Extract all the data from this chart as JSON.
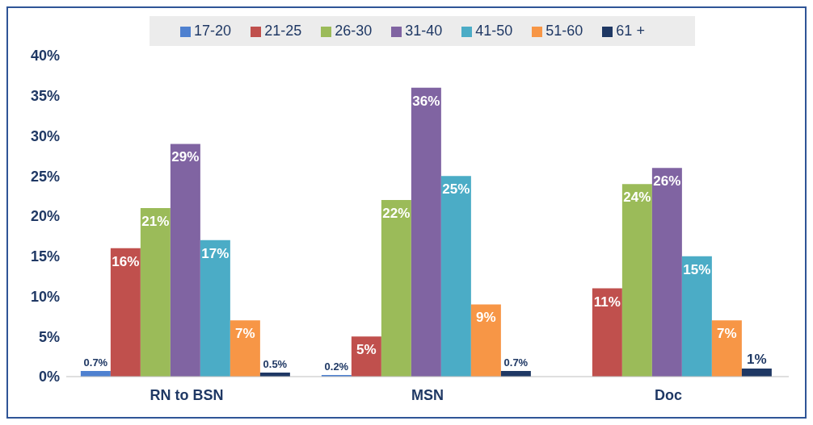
{
  "chart_data": {
    "type": "bar",
    "categories": [
      "RN to BSN",
      "MSN",
      "Doc"
    ],
    "series": [
      {
        "name": "17-20",
        "color": "#4f81d0",
        "values": [
          0.7,
          0.2,
          null
        ],
        "value_labels": [
          "0.7%",
          "0.2%",
          null
        ]
      },
      {
        "name": "21-25",
        "color": "#c0504d",
        "values": [
          16,
          5,
          11
        ],
        "value_labels": [
          "16%",
          "5%",
          "11%"
        ]
      },
      {
        "name": "26-30",
        "color": "#9bbb59",
        "values": [
          21,
          22,
          24
        ],
        "value_labels": [
          "21%",
          "22%",
          "24%"
        ]
      },
      {
        "name": "31-40",
        "color": "#8064a2",
        "values": [
          29,
          36,
          26
        ],
        "value_labels": [
          "29%",
          "36%",
          "26%"
        ]
      },
      {
        "name": "41-50",
        "color": "#4bacc6",
        "values": [
          17,
          25,
          15
        ],
        "value_labels": [
          "17%",
          "25%",
          "15%"
        ]
      },
      {
        "name": "51-60",
        "color": "#f79646",
        "values": [
          7,
          9,
          7
        ],
        "value_labels": [
          "7%",
          "9%",
          "7%"
        ]
      },
      {
        "name": "61 +",
        "color": "#1f3864",
        "values": [
          0.5,
          0.7,
          1
        ],
        "value_labels": [
          "0.5%",
          "0.7%",
          "1%"
        ]
      }
    ],
    "ylim": [
      0,
      40
    ],
    "yticks": [
      {
        "value": 0,
        "label": "0%"
      },
      {
        "value": 5,
        "label": "5%"
      },
      {
        "value": 10,
        "label": "10%"
      },
      {
        "value": 15,
        "label": "15%"
      },
      {
        "value": 20,
        "label": "20%"
      },
      {
        "value": 25,
        "label": "25%"
      },
      {
        "value": 30,
        "label": "30%"
      },
      {
        "value": 35,
        "label": "35%"
      },
      {
        "value": 40,
        "label": "40%"
      }
    ],
    "grid": false,
    "legend": "top"
  }
}
